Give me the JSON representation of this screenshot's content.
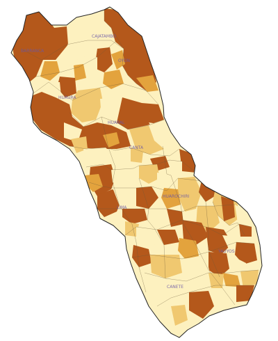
{
  "map": {
    "labels": [
      "CAJATAMBO",
      "OYÓN",
      "BARRANCA",
      "HUAURA",
      "HUARAL",
      "CANTA",
      "HUAROCHIRÍ",
      "LIMA",
      "YAUYOS",
      "CAÑETE"
    ],
    "colors": {
      "class_1": "#fdf1bf",
      "class_2": "#f0c870",
      "class_3": "#e3a33d",
      "class_4": "#b4581b",
      "outline": "#222222",
      "label": "#6a56a6"
    }
  }
}
